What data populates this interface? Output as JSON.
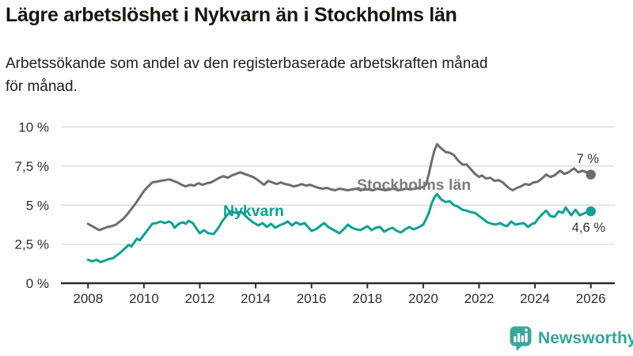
{
  "header": {
    "title": "Lägre arbetslöshet i Nykvarn än i Stockholms län",
    "subtitle_line1": "Arbetssökande som andel av den registerbaserade arbetskraften månad",
    "subtitle_line2": "för månad."
  },
  "footer": {
    "brand": "Newsworthy"
  },
  "colors": {
    "nykvarn_teal": "#0aa295",
    "stockholm_gray": "#6b6e71",
    "stockholm_label_gray": "#7a7d7f",
    "grid": "#d9d9d9",
    "axis": "#2b2b2b",
    "tick_label": "#2e2e2e",
    "annotation": "#333333",
    "brand_teal": "#35a59c"
  },
  "chart_data": {
    "type": "line",
    "title": "Lägre arbetslöshet i Nykvarn än i Stockholms län",
    "subtitle": "Arbetssökande som andel av den registerbaserade arbetskraften månad för månad.",
    "unit": "%",
    "xlim": [
      2007.85,
      2026.85
    ],
    "ylim": [
      0,
      10
    ],
    "grid": true,
    "x_ticks": [
      {
        "t": 2008,
        "label": "2008"
      },
      {
        "t": 2010,
        "label": "2010"
      },
      {
        "t": 2012,
        "label": "2012"
      },
      {
        "t": 2014,
        "label": "2014"
      },
      {
        "t": 2016,
        "label": "2016"
      },
      {
        "t": 2018,
        "label": "2018"
      },
      {
        "t": 2020,
        "label": "2020"
      },
      {
        "t": 2022,
        "label": "2022"
      },
      {
        "t": 2024,
        "label": "2024"
      },
      {
        "t": 2026,
        "label": "2026"
      }
    ],
    "y_ticks": [
      {
        "v": 0,
        "label": "0 %"
      },
      {
        "v": 2.5,
        "label": "2,5 %"
      },
      {
        "v": 5,
        "label": "5 %"
      },
      {
        "v": 7.5,
        "label": "7,5 %"
      },
      {
        "v": 10,
        "label": "10 %"
      }
    ],
    "series": [
      {
        "name": "Stockholms län",
        "color": "#6b6e71",
        "label_color": "#7a7d7f",
        "end_label": "7 %",
        "end_value": 7,
        "points": [
          [
            2008.0,
            3.8
          ],
          [
            2008.1,
            3.7
          ],
          [
            2008.25,
            3.55
          ],
          [
            2008.4,
            3.4
          ],
          [
            2008.55,
            3.5
          ],
          [
            2008.7,
            3.6
          ],
          [
            2008.85,
            3.65
          ],
          [
            2009.0,
            3.75
          ],
          [
            2009.1,
            3.9
          ],
          [
            2009.25,
            4.1
          ],
          [
            2009.4,
            4.4
          ],
          [
            2009.55,
            4.75
          ],
          [
            2009.7,
            5.1
          ],
          [
            2009.85,
            5.5
          ],
          [
            2010.0,
            5.9
          ],
          [
            2010.15,
            6.2
          ],
          [
            2010.3,
            6.45
          ],
          [
            2010.45,
            6.5
          ],
          [
            2010.6,
            6.55
          ],
          [
            2010.75,
            6.6
          ],
          [
            2010.9,
            6.65
          ],
          [
            2011.05,
            6.55
          ],
          [
            2011.2,
            6.45
          ],
          [
            2011.35,
            6.3
          ],
          [
            2011.5,
            6.2
          ],
          [
            2011.65,
            6.3
          ],
          [
            2011.8,
            6.25
          ],
          [
            2011.95,
            6.4
          ],
          [
            2012.1,
            6.3
          ],
          [
            2012.25,
            6.4
          ],
          [
            2012.4,
            6.45
          ],
          [
            2012.55,
            6.6
          ],
          [
            2012.7,
            6.75
          ],
          [
            2012.85,
            6.85
          ],
          [
            2013.0,
            6.75
          ],
          [
            2013.15,
            6.9
          ],
          [
            2013.3,
            7.0
          ],
          [
            2013.45,
            7.1
          ],
          [
            2013.6,
            7.0
          ],
          [
            2013.75,
            6.9
          ],
          [
            2013.9,
            6.8
          ],
          [
            2014.0,
            6.7
          ],
          [
            2014.15,
            6.5
          ],
          [
            2014.3,
            6.3
          ],
          [
            2014.45,
            6.55
          ],
          [
            2014.6,
            6.45
          ],
          [
            2014.75,
            6.35
          ],
          [
            2014.9,
            6.45
          ],
          [
            2015.05,
            6.35
          ],
          [
            2015.2,
            6.3
          ],
          [
            2015.35,
            6.2
          ],
          [
            2015.5,
            6.25
          ],
          [
            2015.65,
            6.35
          ],
          [
            2015.8,
            6.25
          ],
          [
            2015.95,
            6.3
          ],
          [
            2016.1,
            6.2
          ],
          [
            2016.25,
            6.1
          ],
          [
            2016.4,
            6.05
          ],
          [
            2016.55,
            6.1
          ],
          [
            2016.7,
            6.0
          ],
          [
            2016.85,
            5.95
          ],
          [
            2017.0,
            6.05
          ],
          [
            2017.15,
            6.0
          ],
          [
            2017.3,
            5.95
          ],
          [
            2017.45,
            6.0
          ],
          [
            2017.6,
            6.05
          ],
          [
            2017.75,
            5.95
          ],
          [
            2017.9,
            6.0
          ],
          [
            2018.05,
            6.0
          ],
          [
            2018.2,
            5.95
          ],
          [
            2018.35,
            6.05
          ],
          [
            2018.5,
            6.0
          ],
          [
            2018.65,
            5.95
          ],
          [
            2018.8,
            6.0
          ],
          [
            2018.95,
            6.05
          ],
          [
            2019.1,
            5.95
          ],
          [
            2019.25,
            6.0
          ],
          [
            2019.4,
            6.05
          ],
          [
            2019.55,
            6.0
          ],
          [
            2019.7,
            6.05
          ],
          [
            2019.85,
            6.1
          ],
          [
            2020.0,
            6.15
          ],
          [
            2020.1,
            6.3
          ],
          [
            2020.2,
            7.0
          ],
          [
            2020.3,
            7.8
          ],
          [
            2020.4,
            8.5
          ],
          [
            2020.5,
            8.9
          ],
          [
            2020.6,
            8.7
          ],
          [
            2020.7,
            8.55
          ],
          [
            2020.8,
            8.4
          ],
          [
            2020.95,
            8.35
          ],
          [
            2021.1,
            8.2
          ],
          [
            2021.25,
            7.85
          ],
          [
            2021.4,
            7.6
          ],
          [
            2021.55,
            7.6
          ],
          [
            2021.7,
            7.3
          ],
          [
            2021.85,
            7.0
          ],
          [
            2022.0,
            6.8
          ],
          [
            2022.1,
            6.9
          ],
          [
            2022.25,
            6.7
          ],
          [
            2022.4,
            6.75
          ],
          [
            2022.55,
            6.55
          ],
          [
            2022.7,
            6.6
          ],
          [
            2022.85,
            6.45
          ],
          [
            2023.0,
            6.2
          ],
          [
            2023.1,
            6.05
          ],
          [
            2023.2,
            5.95
          ],
          [
            2023.35,
            6.1
          ],
          [
            2023.5,
            6.2
          ],
          [
            2023.65,
            6.35
          ],
          [
            2023.8,
            6.3
          ],
          [
            2023.95,
            6.45
          ],
          [
            2024.1,
            6.5
          ],
          [
            2024.25,
            6.7
          ],
          [
            2024.4,
            6.95
          ],
          [
            2024.55,
            6.8
          ],
          [
            2024.7,
            6.9
          ],
          [
            2024.9,
            7.2
          ],
          [
            2025.05,
            7.0
          ],
          [
            2025.2,
            7.1
          ],
          [
            2025.4,
            7.35
          ],
          [
            2025.55,
            7.1
          ],
          [
            2025.7,
            7.2
          ],
          [
            2025.85,
            7.1
          ],
          [
            2026.0,
            6.95
          ]
        ]
      },
      {
        "name": "Nykvarn",
        "color": "#0aa295",
        "label_color": "#0aa295",
        "end_label": "4,6 %",
        "end_value": 4.6,
        "points": [
          [
            2008.0,
            1.5
          ],
          [
            2008.15,
            1.4
          ],
          [
            2008.3,
            1.5
          ],
          [
            2008.45,
            1.35
          ],
          [
            2008.6,
            1.45
          ],
          [
            2008.75,
            1.55
          ],
          [
            2008.9,
            1.6
          ],
          [
            2009.0,
            1.75
          ],
          [
            2009.15,
            1.95
          ],
          [
            2009.3,
            2.2
          ],
          [
            2009.45,
            2.45
          ],
          [
            2009.55,
            2.35
          ],
          [
            2009.65,
            2.6
          ],
          [
            2009.75,
            2.85
          ],
          [
            2009.85,
            2.75
          ],
          [
            2010.0,
            3.1
          ],
          [
            2010.15,
            3.45
          ],
          [
            2010.3,
            3.8
          ],
          [
            2010.45,
            3.85
          ],
          [
            2010.6,
            3.95
          ],
          [
            2010.75,
            3.85
          ],
          [
            2010.9,
            3.95
          ],
          [
            2011.0,
            3.85
          ],
          [
            2011.1,
            3.55
          ],
          [
            2011.25,
            3.8
          ],
          [
            2011.4,
            3.9
          ],
          [
            2011.5,
            3.8
          ],
          [
            2011.6,
            4.0
          ],
          [
            2011.75,
            3.85
          ],
          [
            2011.9,
            3.45
          ],
          [
            2012.0,
            3.2
          ],
          [
            2012.15,
            3.4
          ],
          [
            2012.3,
            3.2
          ],
          [
            2012.5,
            3.15
          ],
          [
            2012.65,
            3.5
          ],
          [
            2012.8,
            3.95
          ],
          [
            2012.95,
            4.3
          ],
          [
            2013.1,
            4.6
          ],
          [
            2013.3,
            4.5
          ],
          [
            2013.5,
            4.55
          ],
          [
            2013.7,
            4.2
          ],
          [
            2013.9,
            3.9
          ],
          [
            2014.1,
            3.7
          ],
          [
            2014.25,
            3.85
          ],
          [
            2014.4,
            3.6
          ],
          [
            2014.55,
            3.8
          ],
          [
            2014.7,
            3.55
          ],
          [
            2014.85,
            3.7
          ],
          [
            2015.0,
            3.8
          ],
          [
            2015.15,
            3.95
          ],
          [
            2015.3,
            3.7
          ],
          [
            2015.45,
            3.9
          ],
          [
            2015.6,
            3.75
          ],
          [
            2015.75,
            3.85
          ],
          [
            2015.9,
            3.55
          ],
          [
            2016.0,
            3.35
          ],
          [
            2016.15,
            3.45
          ],
          [
            2016.3,
            3.65
          ],
          [
            2016.45,
            3.85
          ],
          [
            2016.6,
            3.6
          ],
          [
            2016.75,
            3.45
          ],
          [
            2016.9,
            3.3
          ],
          [
            2017.0,
            3.2
          ],
          [
            2017.15,
            3.45
          ],
          [
            2017.3,
            3.75
          ],
          [
            2017.45,
            3.55
          ],
          [
            2017.6,
            3.45
          ],
          [
            2017.75,
            3.4
          ],
          [
            2017.9,
            3.55
          ],
          [
            2018.0,
            3.65
          ],
          [
            2018.15,
            3.4
          ],
          [
            2018.3,
            3.55
          ],
          [
            2018.45,
            3.6
          ],
          [
            2018.6,
            3.3
          ],
          [
            2018.75,
            3.45
          ],
          [
            2018.9,
            3.55
          ],
          [
            2019.05,
            3.35
          ],
          [
            2019.2,
            3.25
          ],
          [
            2019.35,
            3.45
          ],
          [
            2019.5,
            3.6
          ],
          [
            2019.65,
            3.45
          ],
          [
            2019.8,
            3.55
          ],
          [
            2019.9,
            3.65
          ],
          [
            2020.0,
            3.75
          ],
          [
            2020.1,
            4.1
          ],
          [
            2020.2,
            4.5
          ],
          [
            2020.3,
            5.1
          ],
          [
            2020.4,
            5.5
          ],
          [
            2020.5,
            5.7
          ],
          [
            2020.65,
            5.35
          ],
          [
            2020.8,
            5.2
          ],
          [
            2020.95,
            5.25
          ],
          [
            2021.1,
            5.0
          ],
          [
            2021.25,
            4.9
          ],
          [
            2021.4,
            4.7
          ],
          [
            2021.55,
            4.65
          ],
          [
            2021.7,
            4.55
          ],
          [
            2021.85,
            4.5
          ],
          [
            2022.0,
            4.3
          ],
          [
            2022.15,
            4.1
          ],
          [
            2022.3,
            3.9
          ],
          [
            2022.45,
            3.8
          ],
          [
            2022.6,
            3.75
          ],
          [
            2022.75,
            3.85
          ],
          [
            2022.9,
            3.7
          ],
          [
            2023.0,
            3.65
          ],
          [
            2023.15,
            3.95
          ],
          [
            2023.3,
            3.75
          ],
          [
            2023.45,
            3.8
          ],
          [
            2023.6,
            3.85
          ],
          [
            2023.75,
            3.6
          ],
          [
            2023.9,
            3.8
          ],
          [
            2024.0,
            3.85
          ],
          [
            2024.1,
            4.1
          ],
          [
            2024.25,
            4.4
          ],
          [
            2024.4,
            4.65
          ],
          [
            2024.55,
            4.3
          ],
          [
            2024.7,
            4.25
          ],
          [
            2024.85,
            4.6
          ],
          [
            2025.0,
            4.5
          ],
          [
            2025.1,
            4.85
          ],
          [
            2025.3,
            4.35
          ],
          [
            2025.45,
            4.7
          ],
          [
            2025.6,
            4.35
          ],
          [
            2025.8,
            4.5
          ],
          [
            2026.0,
            4.6
          ]
        ]
      }
    ]
  }
}
